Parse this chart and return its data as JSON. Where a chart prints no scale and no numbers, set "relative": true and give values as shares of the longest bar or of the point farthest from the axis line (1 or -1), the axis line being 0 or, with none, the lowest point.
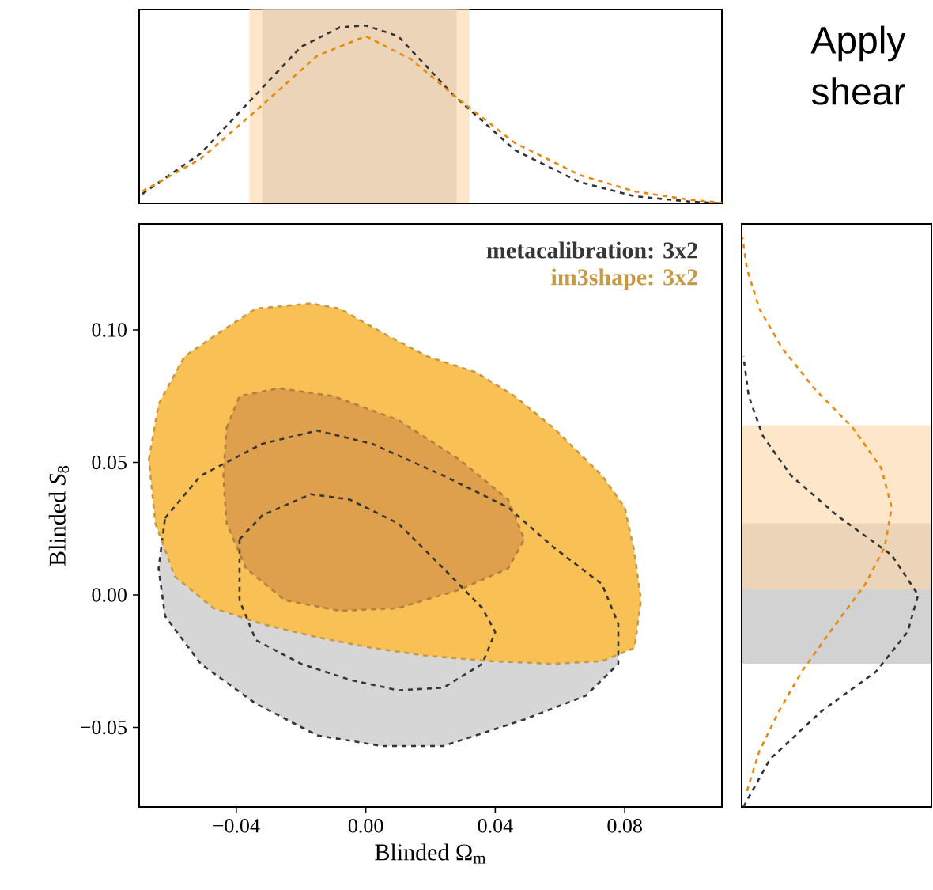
{
  "chart_data": [
    {
      "type": "line",
      "relative": true,
      "xlim": [
        -0.07,
        0.11
      ],
      "line_style": "dashed",
      "annotations": [
        "Apply",
        "shear"
      ],
      "bands": [
        {
          "axis": "x",
          "from": -0.032,
          "to": 0.028,
          "color": "#b4b4b4"
        },
        {
          "axis": "x",
          "from": -0.036,
          "to": 0.032,
          "color": "#fcd6a6"
        }
      ],
      "series": [
        {
          "color": "#333333",
          "x": [
            -0.069,
            -0.051,
            -0.034,
            -0.02,
            -0.008,
            0.0,
            0.01,
            0.027,
            0.046,
            0.066,
            0.083,
            0.1,
            0.11
          ],
          "values": [
            0.053,
            0.28,
            0.61,
            0.88,
            0.99,
            1.0,
            0.94,
            0.61,
            0.3,
            0.12,
            0.04,
            0.01,
            0.0
          ]
        },
        {
          "color": "#e8890c",
          "x": [
            -0.069,
            -0.051,
            -0.034,
            -0.015,
            0.0,
            0.014,
            0.027,
            0.046,
            0.066,
            0.083,
            0.1,
            0.11
          ],
          "values": [
            0.067,
            0.25,
            0.52,
            0.83,
            0.94,
            0.81,
            0.61,
            0.34,
            0.16,
            0.067,
            0.02,
            0.004
          ]
        }
      ]
    },
    {
      "type": "line",
      "xlim": [
        -0.07,
        0.11
      ],
      "ylim": [
        -0.08,
        0.14
      ],
      "line_style": "dashed",
      "legend": "top right",
      "xlabel": "Blinded Ω$_{m}$",
      "ylabel": "Blinded *S*$_{8}$",
      "xticks": [
        {
          "value": -0.04,
          "label": "−0.04"
        },
        {
          "value": 0.0,
          "label": "0.00"
        },
        {
          "value": 0.04,
          "label": "0.04"
        },
        {
          "value": 0.08,
          "label": "0.08"
        }
      ],
      "yticks": [
        {
          "value": -0.05,
          "label": "−0.05"
        },
        {
          "value": 0.0,
          "label": "0.00"
        },
        {
          "value": 0.05,
          "label": "0.05"
        },
        {
          "value": 0.1,
          "label": "0.10"
        }
      ],
      "series": [
        {
          "name": "metacalibration: 3x2",
          "type": "area",
          "color": "#d6d6d6",
          "x": [
            -0.062,
            -0.051,
            -0.032,
            -0.015,
            0.002,
            0.024,
            0.044,
            0.058,
            0.073,
            0.078,
            0.078,
            0.068,
            0.049,
            0.024,
            0.005,
            -0.015,
            -0.034,
            -0.051,
            -0.062,
            -0.064
          ],
          "values": [
            0.029,
            0.045,
            0.057,
            0.062,
            0.057,
            0.045,
            0.033,
            0.018,
            0.004,
            -0.011,
            -0.026,
            -0.038,
            -0.047,
            -0.057,
            -0.057,
            -0.053,
            -0.041,
            -0.026,
            -0.008,
            0.01
          ]
        },
        {
          "type": "area",
          "color": "#d6d6d6",
          "x": [
            -0.039,
            -0.032,
            -0.017,
            -0.005,
            0.01,
            0.024,
            0.036,
            0.04,
            0.036,
            0.024,
            0.01,
            -0.005,
            -0.02,
            -0.034,
            -0.039
          ],
          "values": [
            0.021,
            0.03,
            0.038,
            0.036,
            0.027,
            0.01,
            -0.005,
            -0.014,
            -0.026,
            -0.035,
            -0.036,
            -0.032,
            -0.026,
            -0.017,
            -0.002
          ]
        },
        {
          "name": "im3shape: 3x2",
          "type": "area",
          "color": "#f8c055",
          "x": [
            -0.067,
            -0.064,
            -0.056,
            -0.044,
            -0.034,
            -0.017,
            -0.008,
            0.005,
            0.019,
            0.034,
            0.046,
            0.058,
            0.073,
            0.08,
            0.083,
            0.085,
            0.083,
            0.073,
            0.058,
            0.039,
            0.019,
            0.002,
            -0.015,
            -0.032,
            -0.047,
            -0.059,
            -0.065
          ],
          "values": [
            0.051,
            0.072,
            0.09,
            0.1,
            0.108,
            0.11,
            0.108,
            0.099,
            0.09,
            0.084,
            0.075,
            0.063,
            0.045,
            0.033,
            0.016,
            -0.002,
            -0.02,
            -0.025,
            -0.026,
            -0.025,
            -0.023,
            -0.02,
            -0.016,
            -0.011,
            -0.005,
            0.007,
            0.027
          ]
        },
        {
          "type": "area",
          "color": "#dfa04e",
          "x": [
            -0.043,
            -0.039,
            -0.027,
            -0.01,
            0.01,
            0.029,
            0.044,
            0.049,
            0.044,
            0.029,
            0.01,
            -0.008,
            -0.025,
            -0.037,
            -0.043,
            -0.044
          ],
          "values": [
            0.063,
            0.075,
            0.078,
            0.075,
            0.066,
            0.051,
            0.036,
            0.021,
            0.01,
            0.002,
            -0.005,
            -0.006,
            -0.002,
            0.01,
            0.027,
            0.045
          ]
        }
      ]
    },
    {
      "type": "line",
      "relative": true,
      "orientation": "horizontal",
      "ylim": [
        -0.08,
        0.14
      ],
      "line_style": "dashed",
      "bands": [
        {
          "axis": "y",
          "from": -0.026,
          "to": 0.027,
          "color": "#b4b4b4"
        },
        {
          "axis": "y",
          "from": 0.002,
          "to": 0.064,
          "color": "#fcd6a6"
        }
      ],
      "series": [
        {
          "color": "#333333",
          "x": [
            -0.08,
            -0.062,
            -0.044,
            -0.029,
            -0.014,
            0.0,
            0.015,
            0.03,
            0.045,
            0.06,
            0.075,
            0.09
          ],
          "values": [
            0.01,
            0.16,
            0.45,
            0.76,
            0.94,
            1.0,
            0.85,
            0.54,
            0.28,
            0.12,
            0.04,
            0.01
          ]
        },
        {
          "color": "#e8890c",
          "x": [
            -0.074,
            -0.059,
            -0.044,
            -0.029,
            -0.014,
            0.004,
            0.018,
            0.033,
            0.048,
            0.063,
            0.078,
            0.093,
            0.108,
            0.123,
            0.135
          ],
          "values": [
            0.03,
            0.1,
            0.21,
            0.34,
            0.5,
            0.7,
            0.81,
            0.85,
            0.79,
            0.63,
            0.41,
            0.23,
            0.1,
            0.03,
            0.004
          ]
        }
      ]
    }
  ]
}
